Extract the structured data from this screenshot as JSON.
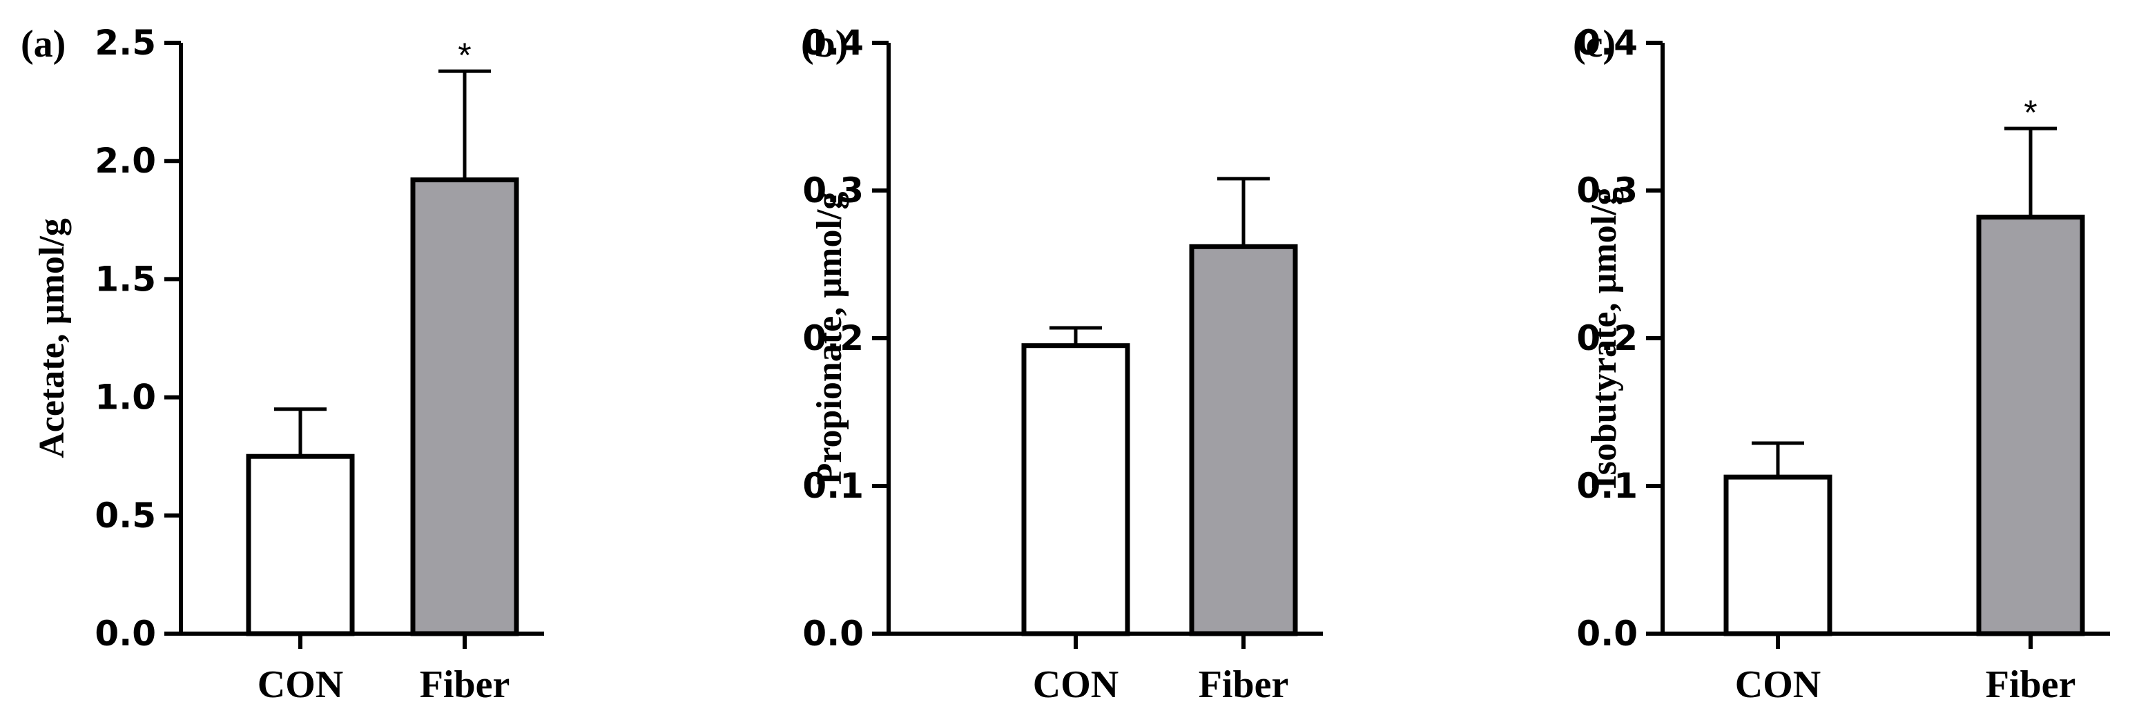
{
  "chart_data": [
    {
      "type": "bar",
      "panel": "(a)",
      "ylabel": "Acetate, µmol/g",
      "categories": [
        "CON",
        "Fiber"
      ],
      "values": [
        0.75,
        1.92
      ],
      "errors": [
        0.2,
        0.46
      ],
      "significance": [
        "",
        "*"
      ],
      "ylim": [
        0,
        2.5
      ],
      "yticks": [
        0.0,
        0.5,
        1.0,
        1.5,
        2.0,
        2.5
      ],
      "ytick_labels": [
        "0.0",
        "0.5",
        "1.0",
        "1.5",
        "2.0",
        "2.5"
      ],
      "bar_colors": [
        "#ffffff",
        "#a09fa4"
      ],
      "grid": false
    },
    {
      "type": "bar",
      "panel": "(b)",
      "ylabel": "Propionate, µmol/g",
      "categories": [
        "CON",
        "Fiber"
      ],
      "values": [
        0.195,
        0.262
      ],
      "errors": [
        0.012,
        0.046
      ],
      "significance": [
        "",
        ""
      ],
      "ylim": [
        0,
        0.4
      ],
      "yticks": [
        0.0,
        0.1,
        0.2,
        0.3,
        0.4
      ],
      "ytick_labels": [
        "0.0",
        "0.1",
        "0.2",
        "0.3",
        "0.4"
      ],
      "bar_colors": [
        "#ffffff",
        "#a09fa4"
      ],
      "grid": false
    },
    {
      "type": "bar",
      "panel": "(c)",
      "ylabel": "Isobutyrate, µmol/g",
      "categories": [
        "CON",
        "Fiber"
      ],
      "values": [
        0.106,
        0.282
      ],
      "errors": [
        0.023,
        0.06
      ],
      "significance": [
        "",
        "*"
      ],
      "ylim": [
        0,
        0.4
      ],
      "yticks": [
        0.0,
        0.1,
        0.2,
        0.3,
        0.4
      ],
      "ytick_labels": [
        "0.0",
        "0.1",
        "0.2",
        "0.3",
        "0.4"
      ],
      "bar_colors": [
        "#ffffff",
        "#a09fa4"
      ],
      "grid": false
    }
  ]
}
